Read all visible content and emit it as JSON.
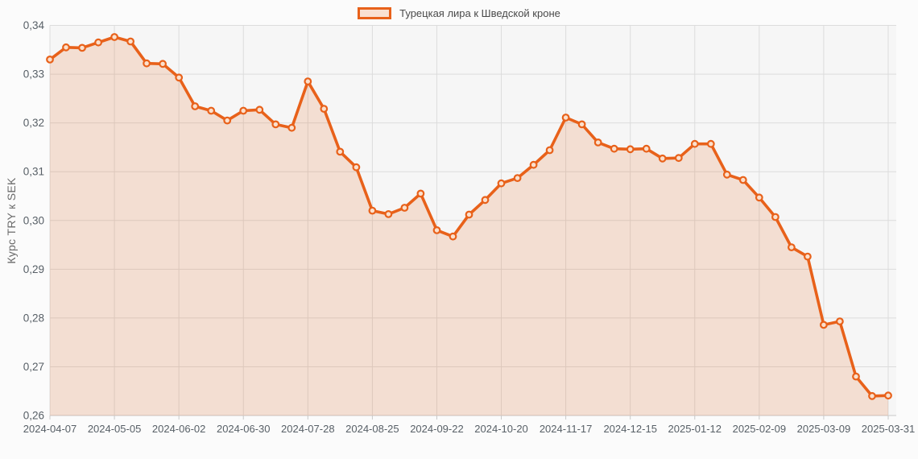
{
  "page": {
    "background": "#fbfbfb"
  },
  "chart_data": {
    "type": "area",
    "title": "",
    "legend": "Турецкая лира к Шведской кроне",
    "legend_position": "top-center",
    "xlabel": "",
    "ylabel": "Курс TRY к SEK",
    "ylim": [
      0.26,
      0.34
    ],
    "y_tick_step": 0.01,
    "grid": true,
    "y_ticks": [
      {
        "value": 0.34,
        "label": "0,34"
      },
      {
        "value": 0.33,
        "label": "0,33"
      },
      {
        "value": 0.32,
        "label": "0,32"
      },
      {
        "value": 0.31,
        "label": "0,31"
      },
      {
        "value": 0.3,
        "label": "0,30"
      },
      {
        "value": 0.29,
        "label": "0,29"
      },
      {
        "value": 0.28,
        "label": "0,28"
      },
      {
        "value": 0.27,
        "label": "0,27"
      },
      {
        "value": 0.26,
        "label": "0,26"
      }
    ],
    "x_ticks": [
      {
        "index": 0,
        "label": "2024-04-07"
      },
      {
        "index": 4,
        "label": "2024-05-05"
      },
      {
        "index": 8,
        "label": "2024-06-02"
      },
      {
        "index": 12,
        "label": "2024-06-30"
      },
      {
        "index": 16,
        "label": "2024-07-28"
      },
      {
        "index": 20,
        "label": "2024-08-25"
      },
      {
        "index": 24,
        "label": "2024-09-22"
      },
      {
        "index": 28,
        "label": "2024-10-20"
      },
      {
        "index": 32,
        "label": "2024-11-17"
      },
      {
        "index": 36,
        "label": "2024-12-15"
      },
      {
        "index": 40,
        "label": "2025-01-12"
      },
      {
        "index": 44,
        "label": "2025-02-09"
      },
      {
        "index": 48,
        "label": "2025-03-09"
      },
      {
        "index": 52,
        "label": "2025-03-31"
      }
    ],
    "series": [
      {
        "name": "Турецкая лира к Шведской кроне",
        "values": [
          0.333,
          0.3355,
          0.3354,
          0.3365,
          0.3376,
          0.3367,
          0.3322,
          0.3321,
          0.3293,
          0.3234,
          0.3225,
          0.3205,
          0.3225,
          0.3227,
          0.3197,
          0.319,
          0.3285,
          0.3229,
          0.3141,
          0.3109,
          0.302,
          0.3013,
          0.3026,
          0.3055,
          0.298,
          0.2967,
          0.3012,
          0.3042,
          0.3076,
          0.3087,
          0.3114,
          0.3144,
          0.3211,
          0.3197,
          0.316,
          0.3147,
          0.3146,
          0.3147,
          0.3127,
          0.3128,
          0.3157,
          0.3157,
          0.3094,
          0.3083,
          0.3047,
          0.3007,
          0.2945,
          0.2926,
          0.2786,
          0.2793,
          0.268,
          0.264,
          0.2641
        ]
      }
    ],
    "colors": {
      "line": "#e8611a",
      "area_fill": "rgba(232,97,26,0.16)",
      "marker_fill": "#fbe0cd",
      "plot_background": "#f6f6f6",
      "gridline": "#dcdcdc",
      "axis_line": "#c8c8c8",
      "tick_text": "#575f66",
      "legend_text": "#4a4a4a"
    }
  }
}
